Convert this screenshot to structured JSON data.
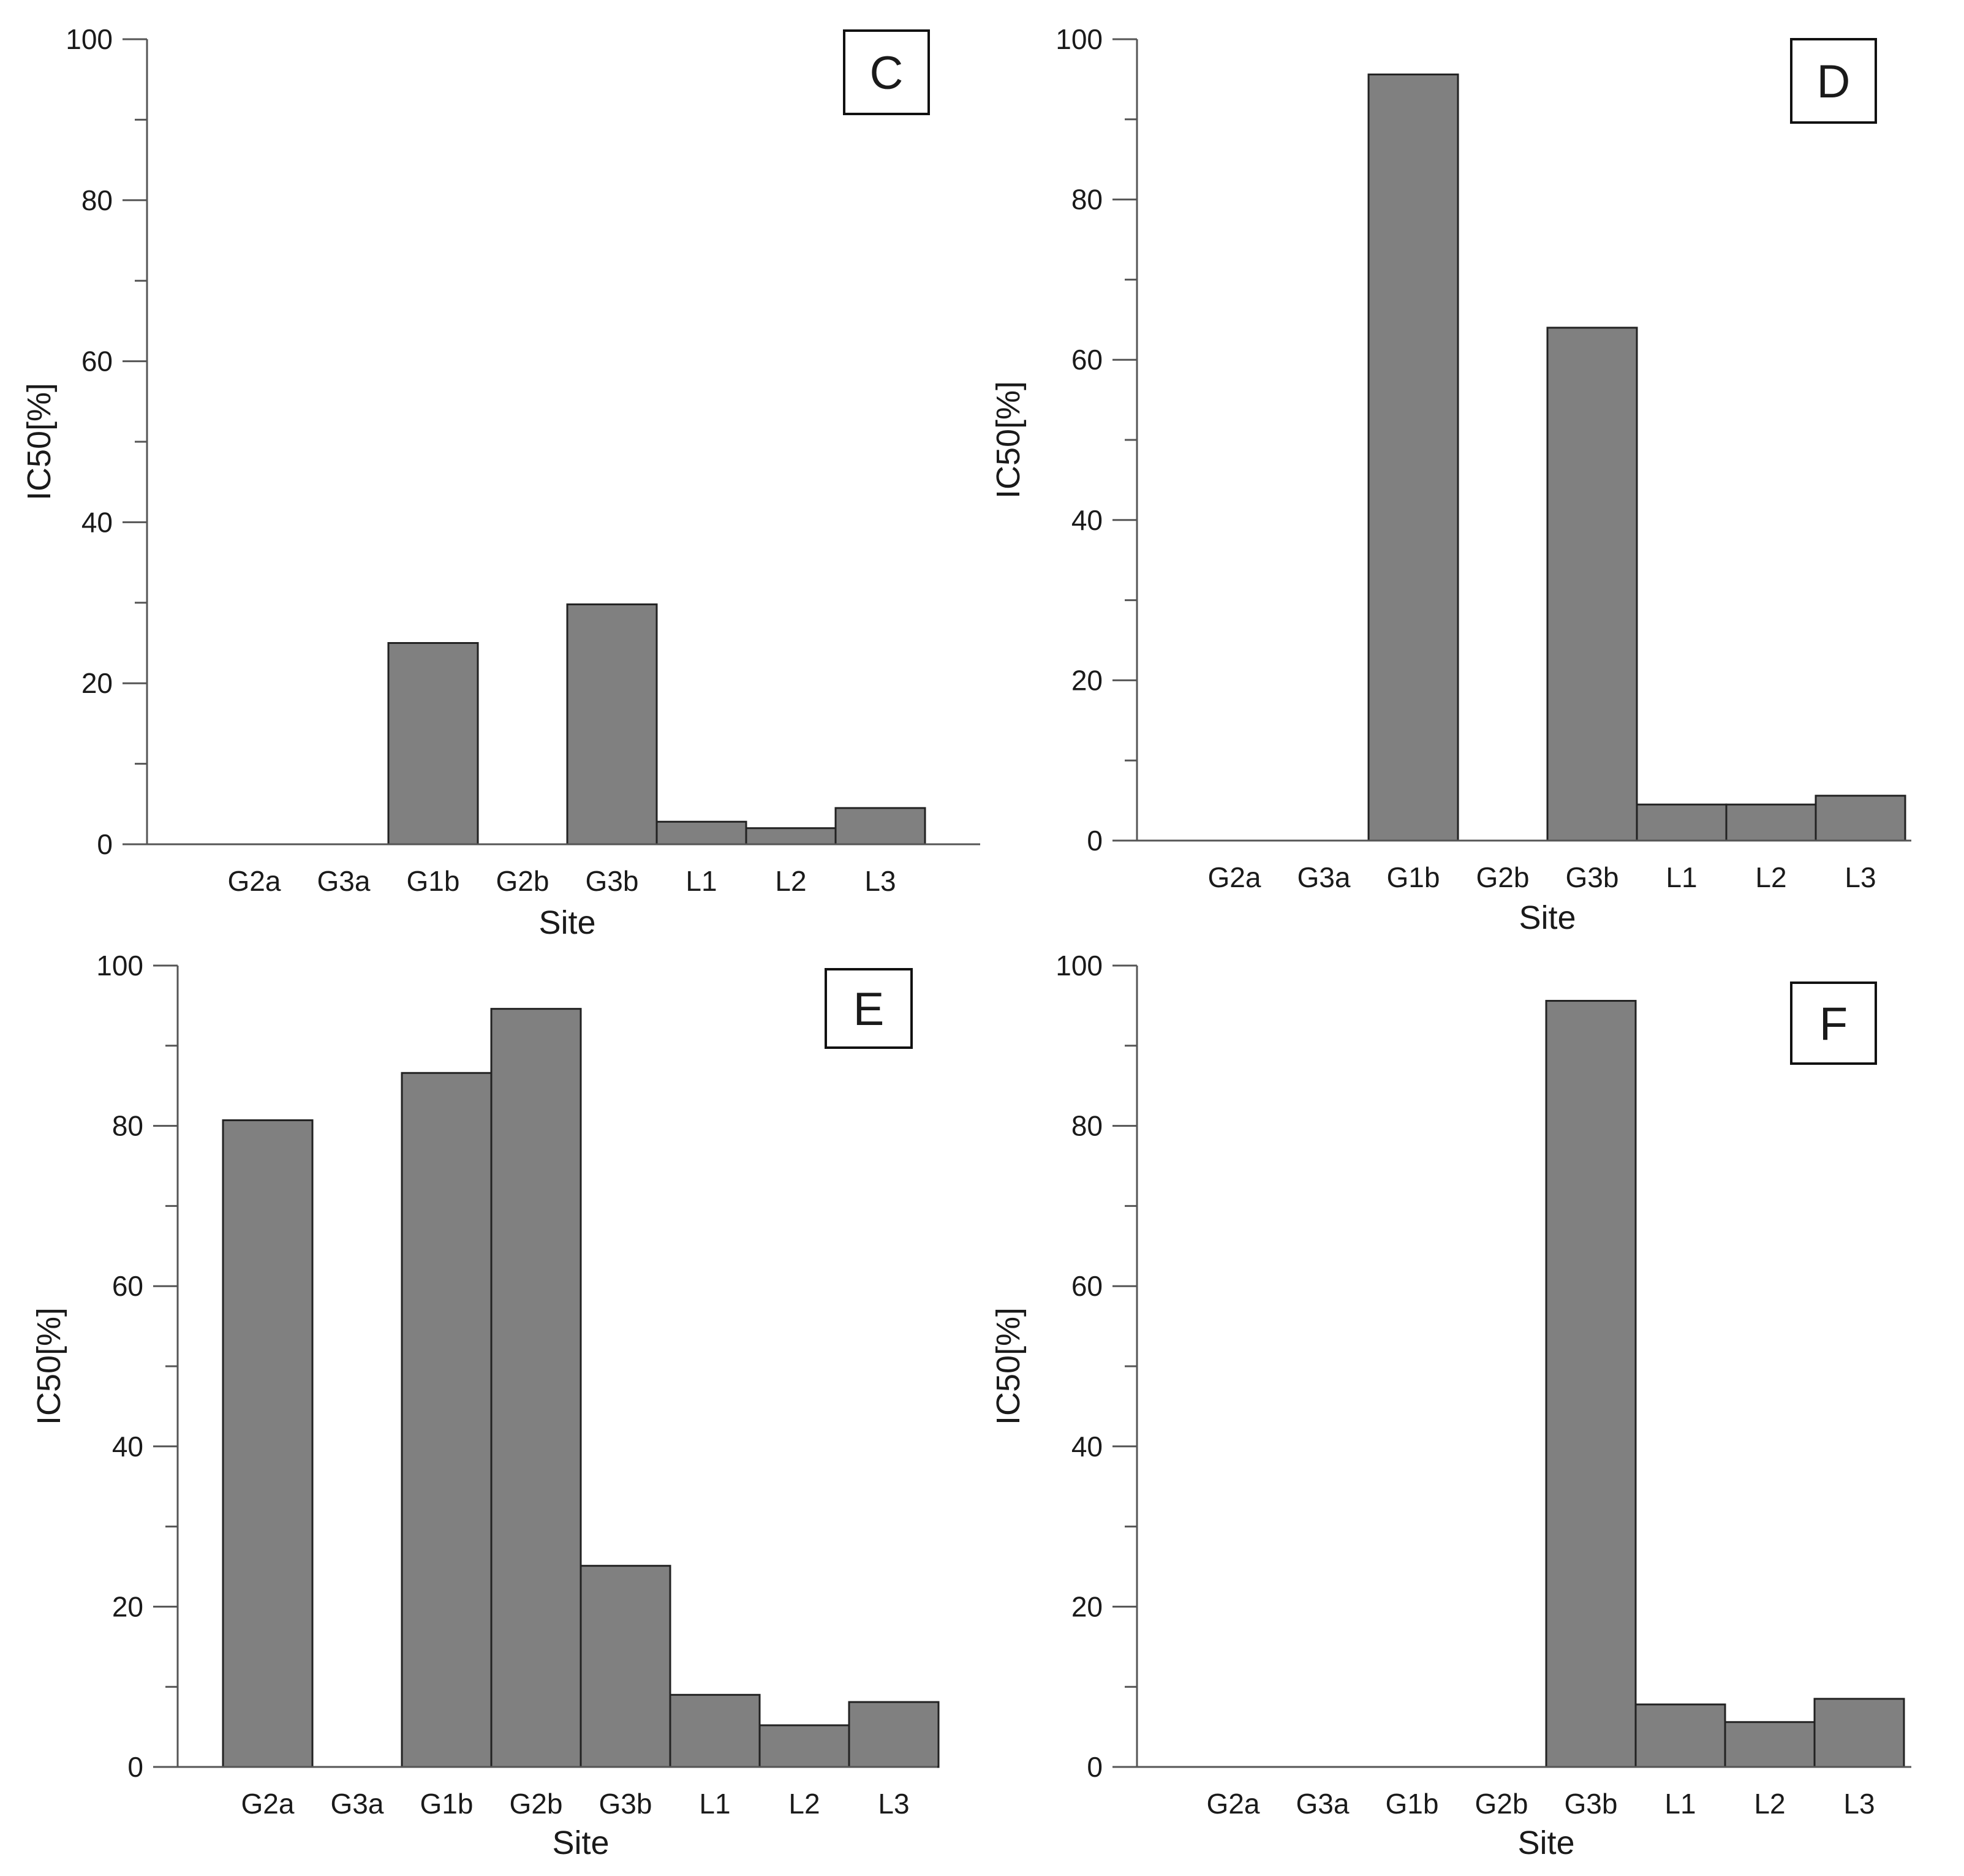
{
  "figure": {
    "bar_color": "#808080",
    "bar_edge_color": "#222222",
    "axis_color": "#555555"
  },
  "chart_data": [
    {
      "type": "bar",
      "panel_label": "C",
      "categories": [
        "G2a",
        "G3a",
        "G1b",
        "G2b",
        "G3b",
        "L1",
        "L2",
        "L3"
      ],
      "values": [
        0,
        0,
        25,
        0,
        29.8,
        2.8,
        2,
        4.5
      ],
      "xlabel": "Site",
      "ylabel": "IC50[%]",
      "ylim": [
        0,
        100
      ],
      "yticks": [
        "0",
        "20",
        "40",
        "60",
        "80",
        "100"
      ],
      "grid": false
    },
    {
      "type": "bar",
      "panel_label": "D",
      "categories": [
        "G2a",
        "G3a",
        "G1b",
        "G2b",
        "G3b",
        "L1",
        "L2",
        "L3"
      ],
      "values": [
        0,
        0,
        95.6,
        0,
        64,
        4.5,
        4.5,
        5.6
      ],
      "xlabel": "Site",
      "ylabel": "IC50[%]",
      "ylim": [
        0,
        100
      ],
      "yticks": [
        "0",
        "20",
        "40",
        "60",
        "80",
        "100"
      ],
      "grid": false
    },
    {
      "type": "bar",
      "panel_label": "E",
      "categories": [
        "G2a",
        "G3a",
        "G1b",
        "G2b",
        "G3b",
        "L1",
        "L2",
        "L3"
      ],
      "values": [
        80.7,
        0,
        86.6,
        94.6,
        25.1,
        9,
        5.2,
        8.1
      ],
      "xlabel": "Site",
      "ylabel": "IC50[%]",
      "ylim": [
        0,
        100
      ],
      "yticks": [
        "0",
        "20",
        "40",
        "60",
        "80",
        "100"
      ],
      "grid": false
    },
    {
      "type": "bar",
      "panel_label": "F",
      "categories": [
        "G2a",
        "G3a",
        "G1b",
        "G2b",
        "G3b",
        "L1",
        "L2",
        "L3"
      ],
      "values": [
        0,
        0,
        0,
        0,
        95.6,
        7.8,
        5.6,
        8.5
      ],
      "xlabel": "Site",
      "ylabel": "IC50[%]",
      "ylim": [
        0,
        100
      ],
      "yticks": [
        "0",
        "20",
        "40",
        "60",
        "80",
        "100"
      ],
      "grid": false
    }
  ]
}
